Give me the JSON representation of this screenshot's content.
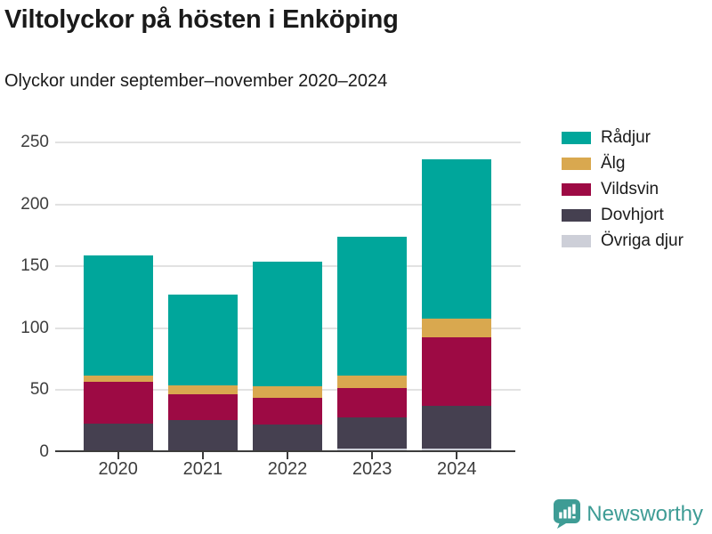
{
  "header": {
    "title": "Viltolyckor på hösten i Enköping",
    "subtitle": "Olyckor under september–november 2020–2024"
  },
  "chart_data": {
    "type": "bar",
    "stacked": true,
    "title": "Viltolyckor på hösten i Enköping",
    "subtitle": "Olyckor under september–november 2020–2024",
    "categories": [
      "2020",
      "2021",
      "2022",
      "2023",
      "2024"
    ],
    "series": [
      {
        "name": "Rådjur",
        "color": "#00A69B",
        "values": [
          97,
          73,
          101,
          112,
          128
        ]
      },
      {
        "name": "Älg",
        "color": "#D9A84F",
        "values": [
          5,
          7,
          9,
          10,
          15
        ]
      },
      {
        "name": "Vildsvin",
        "color": "#9D0A44",
        "values": [
          34,
          21,
          22,
          24,
          56
        ]
      },
      {
        "name": "Dovhjort",
        "color": "#454050",
        "values": [
          22,
          25,
          21,
          25,
          34
        ]
      },
      {
        "name": "Övriga djur",
        "color": "#CDCFD8",
        "values": [
          1,
          1,
          1,
          3,
          3
        ]
      }
    ],
    "totals": [
      159,
      127,
      154,
      174,
      236
    ],
    "xlabel": "",
    "ylabel": "",
    "ylim": [
      0,
      250
    ],
    "yticks": [
      0,
      50,
      100,
      150,
      200,
      250
    ],
    "grid": "horizontal",
    "legend_position": "top-right",
    "stack_order_bottom_to_top": [
      "Övriga djur",
      "Dovhjort",
      "Vildsvin",
      "Älg",
      "Rådjur"
    ]
  },
  "colors": {
    "axis": "#3c3c3c",
    "gridline": "#e2e2e2",
    "text": "#1a1a1a",
    "tick_label": "#3d3d3d",
    "brand": "#3e9c95"
  },
  "branding": {
    "name": "Newsworthy"
  }
}
